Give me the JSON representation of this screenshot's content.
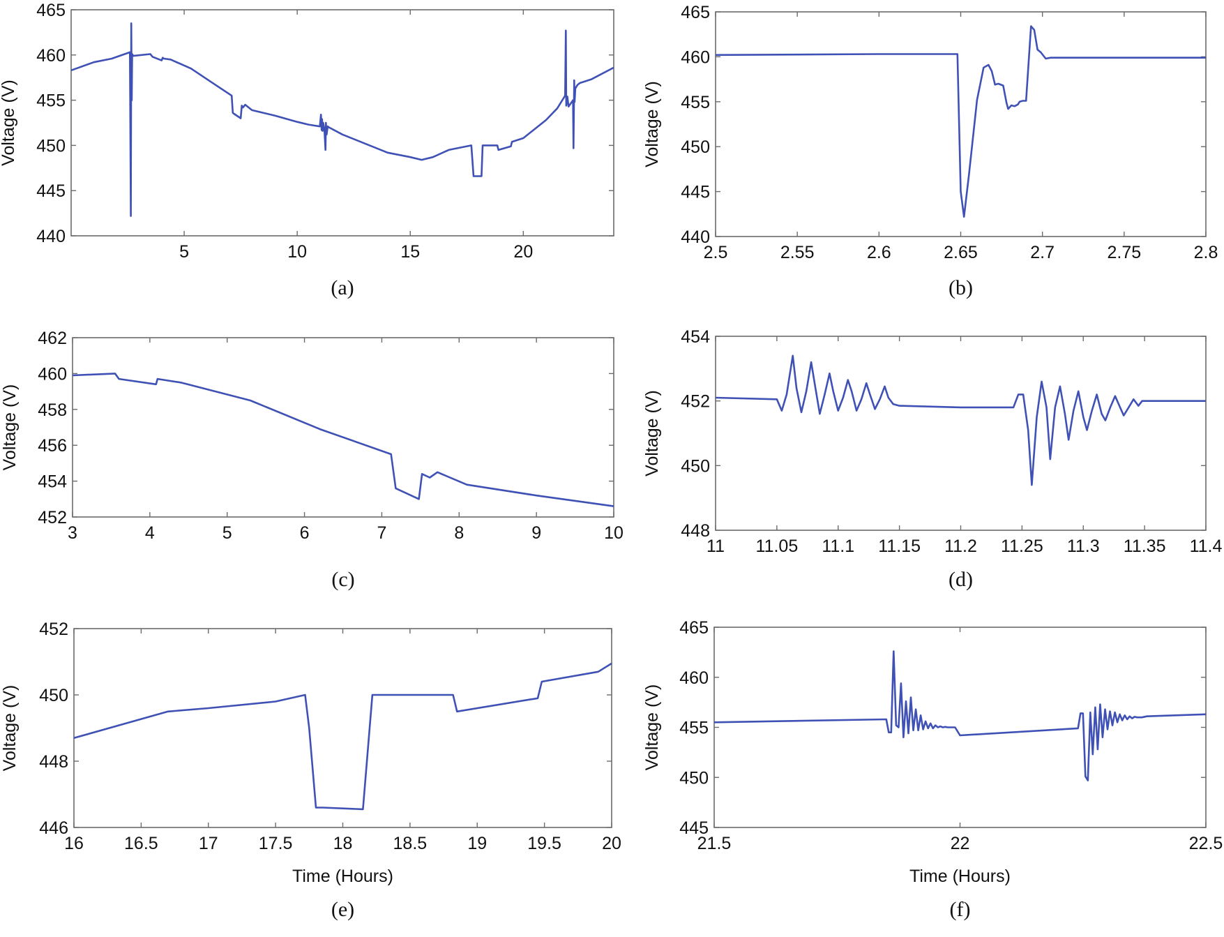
{
  "figure": {
    "kind": "six-panel voltage time series"
  },
  "colors": {
    "series": "#3f51b5",
    "axis": "#6b6b6b",
    "text": "#111111"
  },
  "chart_data": [
    {
      "id": "a",
      "type": "line",
      "caption": "(a)",
      "ylabel": "Voltage (V)",
      "xlabel": "",
      "xlim": [
        0,
        24
      ],
      "ylim": [
        440,
        465
      ],
      "xticks": [
        5,
        10,
        15,
        20
      ],
      "xtick_labels": [
        "5",
        "10",
        "15",
        "20"
      ],
      "yticks": [
        440,
        445,
        450,
        455,
        460,
        465
      ],
      "ytick_labels": [
        "440",
        "445",
        "450",
        "455",
        "460",
        "465"
      ],
      "series": [
        {
          "name": "Voltage",
          "x": [
            0,
            1,
            1.8,
            2.6,
            2.64,
            2.66,
            2.68,
            2.7,
            2.72,
            2.75,
            3.5,
            3.6,
            3.7,
            4,
            4.05,
            4.1,
            4.4,
            5.3,
            6.2,
            7.1,
            7.15,
            7.2,
            7.5,
            7.55,
            7.6,
            7.7,
            8,
            9,
            10,
            10.5,
            11,
            11.05,
            11.08,
            11.1,
            11.12,
            11.15,
            11.2,
            11.25,
            11.27,
            11.3,
            11.35,
            11.4,
            12,
            13,
            14,
            15,
            15.5,
            16,
            16.7,
            17.7,
            17.8,
            18.15,
            18.2,
            18.85,
            18.9,
            19.45,
            19.5,
            20,
            20.5,
            21,
            21.5,
            21.85,
            21.88,
            21.9,
            21.95,
            22,
            22.2,
            22.22,
            22.25,
            22.27,
            22.3,
            22.35,
            22.4,
            22.5,
            23,
            24
          ],
          "y": [
            458.3,
            459.2,
            459.6,
            460.3,
            442.2,
            463.5,
            455,
            460.1,
            460,
            459.9,
            460.1,
            459.8,
            459.7,
            459.4,
            459.7,
            459.6,
            459.5,
            458.5,
            457,
            455.5,
            453.6,
            453.5,
            453,
            454.4,
            454.2,
            454.5,
            453.9,
            453.3,
            452.6,
            452.3,
            452.1,
            453.4,
            451.7,
            452.9,
            451.6,
            452.5,
            451.8,
            449.5,
            452.5,
            451.2,
            452.1,
            452,
            451.2,
            450.2,
            449.2,
            448.7,
            448.4,
            448.7,
            449.5,
            450,
            446.6,
            446.6,
            450,
            450,
            449.5,
            449.9,
            450.4,
            450.8,
            451.8,
            452.8,
            454.1,
            455.5,
            462.7,
            454.4,
            455.4,
            454.3,
            455,
            449.7,
            457.2,
            454.8,
            456.3,
            456.5,
            456.7,
            456.9,
            457.3,
            458.6
          ]
        }
      ]
    },
    {
      "id": "b",
      "type": "line",
      "caption": "(b)",
      "ylabel": "Voltage (V)",
      "xlabel": "",
      "xlim": [
        2.5,
        2.8
      ],
      "ylim": [
        440,
        465
      ],
      "xticks": [
        2.5,
        2.55,
        2.6,
        2.65,
        2.7,
        2.75,
        2.8
      ],
      "xtick_labels": [
        "2.5",
        "2.55",
        "2.6",
        "2.65",
        "2.7",
        "2.75",
        "2.8"
      ],
      "yticks": [
        440,
        445,
        450,
        455,
        460,
        465
      ],
      "ytick_labels": [
        "440",
        "445",
        "450",
        "455",
        "460",
        "465"
      ],
      "series": [
        {
          "name": "Voltage",
          "x": [
            2.5,
            2.6,
            2.648,
            2.65,
            2.652,
            2.655,
            2.66,
            2.664,
            2.667,
            2.669,
            2.671,
            2.673,
            2.676,
            2.678,
            2.679,
            2.681,
            2.683,
            2.685,
            2.686,
            2.688,
            2.69,
            2.693,
            2.695,
            2.697,
            2.699,
            2.702,
            2.705,
            2.71,
            2.8
          ],
          "y": [
            460.2,
            460.3,
            460.3,
            445,
            442.2,
            446.8,
            455.2,
            458.8,
            459.1,
            458.4,
            456.9,
            457,
            456.8,
            454.9,
            454.2,
            454.6,
            454.5,
            454.7,
            455,
            455.1,
            455.1,
            463.4,
            463,
            460.8,
            460.5,
            459.8,
            459.9,
            459.9,
            459.9
          ]
        }
      ]
    },
    {
      "id": "c",
      "type": "line",
      "caption": "(c)",
      "ylabel": "Voltage (V)",
      "xlabel": "",
      "xlim": [
        3,
        10
      ],
      "ylim": [
        452,
        462
      ],
      "xticks": [
        3,
        4,
        5,
        6,
        7,
        8,
        9,
        10
      ],
      "xtick_labels": [
        "3",
        "4",
        "5",
        "6",
        "7",
        "8",
        "9",
        "10"
      ],
      "yticks": [
        452,
        454,
        456,
        458,
        460,
        462
      ],
      "ytick_labels": [
        "452",
        "454",
        "456",
        "458",
        "460",
        "462"
      ],
      "series": [
        {
          "name": "Voltage",
          "x": [
            3,
            3.55,
            3.6,
            4.08,
            4.1,
            4.4,
            5.3,
            6.2,
            7.12,
            7.18,
            7.48,
            7.52,
            7.62,
            7.72,
            8.1,
            9,
            10
          ],
          "y": [
            459.9,
            460,
            459.7,
            459.4,
            459.7,
            459.5,
            458.5,
            456.9,
            455.5,
            453.6,
            453,
            454.4,
            454.2,
            454.5,
            453.8,
            453.2,
            452.6
          ]
        }
      ]
    },
    {
      "id": "d",
      "type": "line",
      "caption": "(d)",
      "ylabel": "Voltage (V)",
      "xlabel": "",
      "xlim": [
        11,
        11.4
      ],
      "ylim": [
        448,
        454
      ],
      "xticks": [
        11,
        11.05,
        11.1,
        11.15,
        11.2,
        11.25,
        11.3,
        11.35,
        11.4
      ],
      "xtick_labels": [
        "11",
        "11.05",
        "11.1",
        "11.15",
        "11.2",
        "11.25",
        "11.3",
        "11.35",
        "11.4"
      ],
      "yticks": [
        448,
        450,
        452,
        454
      ],
      "ytick_labels": [
        "448",
        "450",
        "452",
        "454"
      ],
      "series": [
        {
          "name": "Voltage",
          "x": [
            11,
            11.05,
            11.054,
            11.058,
            11.063,
            11.066,
            11.07,
            11.074,
            11.078,
            11.081,
            11.085,
            11.089,
            11.093,
            11.096,
            11.1,
            11.104,
            11.108,
            11.111,
            11.115,
            11.119,
            11.123,
            11.126,
            11.13,
            11.134,
            11.138,
            11.141,
            11.145,
            11.15,
            11.2,
            11.243,
            11.247,
            11.251,
            11.255,
            11.258,
            11.262,
            11.266,
            11.27,
            11.273,
            11.277,
            11.281,
            11.285,
            11.288,
            11.292,
            11.296,
            11.3,
            11.303,
            11.307,
            11.311,
            11.315,
            11.318,
            11.322,
            11.326,
            11.33,
            11.333,
            11.337,
            11.341,
            11.345,
            11.348,
            11.4
          ],
          "y": [
            452.1,
            452.05,
            451.7,
            452.2,
            453.4,
            452.4,
            451.65,
            452.3,
            453.2,
            452.5,
            451.6,
            452.2,
            452.85,
            452.3,
            451.7,
            452.1,
            452.65,
            452.3,
            451.7,
            452.05,
            452.55,
            452.2,
            451.75,
            452.05,
            452.45,
            452.1,
            451.9,
            451.85,
            451.8,
            451.8,
            452.2,
            452.2,
            451.1,
            449.4,
            451.5,
            452.6,
            451.8,
            450.2,
            451.8,
            452.45,
            451.6,
            450.8,
            451.7,
            452.3,
            451.5,
            451.1,
            451.7,
            452.2,
            451.6,
            451.4,
            451.8,
            452.15,
            451.8,
            451.55,
            451.8,
            452.05,
            451.85,
            452.0,
            452.0
          ]
        }
      ]
    },
    {
      "id": "e",
      "type": "line",
      "caption": "(e)",
      "ylabel": "Voltage (V)",
      "xlabel": "Time (Hours)",
      "xlim": [
        16,
        20
      ],
      "ylim": [
        446,
        452
      ],
      "xticks": [
        16,
        16.5,
        17,
        17.5,
        18,
        18.5,
        19,
        19.5,
        20
      ],
      "xtick_labels": [
        "16",
        "16.5",
        "17",
        "17.5",
        "18",
        "18.5",
        "19",
        "19.5",
        "20"
      ],
      "yticks": [
        446,
        448,
        450,
        452
      ],
      "ytick_labels": [
        "446",
        "448",
        "450",
        "452"
      ],
      "series": [
        {
          "name": "Voltage",
          "x": [
            16,
            16.7,
            17,
            17.5,
            17.72,
            17.75,
            17.8,
            17.85,
            18.15,
            18.22,
            18.35,
            18.82,
            18.85,
            19.45,
            19.48,
            19.9,
            20
          ],
          "y": [
            448.7,
            449.5,
            449.6,
            449.8,
            450,
            449,
            446.6,
            446.6,
            446.55,
            450,
            450,
            450,
            449.5,
            449.9,
            450.4,
            450.7,
            450.95
          ]
        }
      ]
    },
    {
      "id": "f",
      "type": "line",
      "caption": "(f)",
      "ylabel": "Voltage (V)",
      "xlabel": "Time (Hours)",
      "xlim": [
        21.5,
        22.5
      ],
      "ylim": [
        445,
        465
      ],
      "xticks": [
        21.5,
        22,
        22.5
      ],
      "xtick_labels": [
        "21.5",
        "22",
        "22.5"
      ],
      "yticks": [
        445,
        450,
        455,
        460,
        465
      ],
      "ytick_labels": [
        "445",
        "450",
        "455",
        "460",
        "465"
      ],
      "series": [
        {
          "name": "Voltage",
          "x": [
            21.5,
            21.85,
            21.855,
            21.86,
            21.865,
            21.87,
            21.875,
            21.88,
            21.885,
            21.89,
            21.895,
            21.9,
            21.905,
            21.91,
            21.915,
            21.92,
            21.925,
            21.93,
            21.935,
            21.94,
            21.945,
            21.95,
            21.955,
            21.96,
            21.965,
            21.97,
            21.975,
            21.98,
            21.985,
            21.99,
            22,
            22.24,
            22.245,
            22.25,
            22.255,
            22.26,
            22.265,
            22.27,
            22.275,
            22.28,
            22.285,
            22.29,
            22.295,
            22.3,
            22.305,
            22.31,
            22.315,
            22.32,
            22.325,
            22.33,
            22.335,
            22.34,
            22.345,
            22.35,
            22.355,
            22.36,
            22.365,
            22.37,
            22.38,
            22.5
          ],
          "y": [
            455.5,
            455.8,
            454.5,
            454.5,
            462.6,
            455.2,
            455,
            459.4,
            454,
            457.6,
            454.4,
            458,
            454.7,
            456.8,
            454.7,
            456.2,
            454.8,
            455.6,
            454.9,
            455.4,
            454.9,
            455.2,
            455,
            455.1,
            455,
            455.05,
            455,
            455,
            455,
            455,
            454.2,
            454.9,
            456.4,
            456.4,
            450.1,
            449.7,
            456.5,
            452.3,
            457,
            452.8,
            457.3,
            454,
            456.8,
            454.8,
            456.6,
            455.2,
            456.5,
            455.5,
            456.3,
            455.7,
            456.2,
            455.8,
            456.1,
            455.9,
            456.05,
            456,
            456,
            456,
            456.1,
            456.3
          ]
        }
      ]
    }
  ]
}
